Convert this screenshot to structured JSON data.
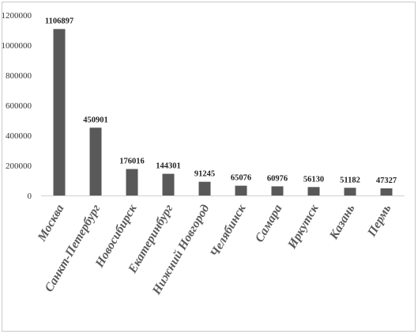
{
  "chart_data": {
    "type": "bar",
    "categories": [
      "Москва",
      "Санкт-Петербург",
      "Новосибирск",
      "Екатеринбург",
      "Нижний Новгород",
      "Челябинск",
      "Самара",
      "Иркутск",
      "Казань",
      "Пермь"
    ],
    "values": [
      1106897,
      450901,
      176016,
      144301,
      91245,
      65076,
      60976,
      56130,
      51182,
      47327
    ],
    "data_labels": [
      "1106897",
      "450901",
      "176016",
      "144301",
      "91245",
      "65076",
      "60976",
      "56130",
      "51182",
      "47327"
    ],
    "y_ticks": [
      "0",
      "200000",
      "400000",
      "600000",
      "800000",
      "1000000",
      "1200000"
    ],
    "ylim": [
      0,
      1200000
    ],
    "title": "",
    "xlabel": "",
    "ylabel": "",
    "grid": false,
    "legend": "none",
    "bar_color": "#595959"
  }
}
